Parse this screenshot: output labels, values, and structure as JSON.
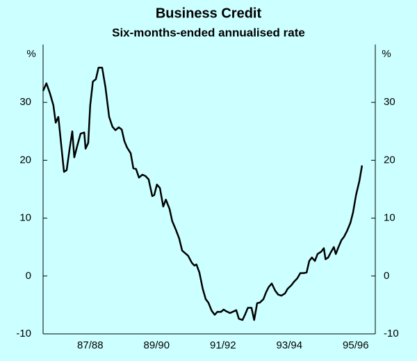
{
  "chart_data": {
    "type": "line",
    "title": "Business Credit",
    "subtitle": "Six-months-ended annualised rate",
    "y_unit": "%",
    "y2_unit": "%",
    "xlim": [
      1986.58,
      1996.59
    ],
    "xticks": [
      {
        "value": 1988,
        "label": "87/88"
      },
      {
        "value": 1990,
        "label": "89/90"
      },
      {
        "value": 1992,
        "label": "91/92"
      },
      {
        "value": 1994,
        "label": "93/94"
      },
      {
        "value": 1996,
        "label": "95/96"
      }
    ],
    "ylim": [
      -10,
      40
    ],
    "yticks": [
      -10,
      0,
      10,
      20,
      30
    ],
    "y2lim": [
      -10,
      40
    ],
    "y2ticks": [
      -10,
      0,
      10,
      20,
      30
    ],
    "color": "#000000",
    "x": [
      1986.58,
      1986.68,
      1986.79,
      1986.89,
      1986.96,
      1987.04,
      1987.12,
      1987.21,
      1987.29,
      1987.38,
      1987.46,
      1987.52,
      1987.61,
      1987.71,
      1987.82,
      1987.86,
      1987.94,
      1988.0,
      1988.08,
      1988.17,
      1988.25,
      1988.36,
      1988.46,
      1988.57,
      1988.67,
      1988.76,
      1988.86,
      1988.95,
      1989.03,
      1989.11,
      1989.22,
      1989.3,
      1989.38,
      1989.47,
      1989.57,
      1989.66,
      1989.76,
      1989.87,
      1989.93,
      1990.01,
      1990.1,
      1990.2,
      1990.28,
      1990.39,
      1990.47,
      1990.58,
      1990.68,
      1990.77,
      1990.85,
      1990.95,
      1991.06,
      1991.14,
      1991.2,
      1991.29,
      1991.39,
      1991.48,
      1991.56,
      1991.66,
      1991.75,
      1991.83,
      1991.94,
      1992.02,
      1992.1,
      1992.21,
      1992.29,
      1992.4,
      1992.48,
      1992.59,
      1992.67,
      1992.75,
      1992.86,
      1992.94,
      1993.03,
      1993.11,
      1993.22,
      1993.3,
      1993.38,
      1993.47,
      1993.57,
      1993.66,
      1993.76,
      1993.87,
      1993.95,
      1994.06,
      1994.14,
      1994.24,
      1994.33,
      1994.43,
      1994.52,
      1994.6,
      1994.68,
      1994.77,
      1994.85,
      1994.96,
      1995.04,
      1995.09,
      1995.17,
      1995.26,
      1995.34,
      1995.4,
      1995.48,
      1995.57,
      1995.65,
      1995.74,
      1995.84,
      1995.92,
      1996.01,
      1996.11,
      1996.19
    ],
    "values": [
      32,
      33.3,
      31.5,
      29.5,
      26.5,
      27.5,
      23,
      18,
      18.3,
      22,
      25,
      20.5,
      22.5,
      24.6,
      24.8,
      22,
      23,
      29.5,
      33.6,
      34,
      36,
      36,
      32.6,
      27.5,
      25.8,
      25.2,
      25.7,
      25.3,
      23.3,
      22.2,
      21.2,
      18.6,
      18.5,
      17,
      17.5,
      17.3,
      16.7,
      13.8,
      14,
      15.8,
      15.2,
      12,
      13.2,
      11.6,
      9.5,
      8,
      6.5,
      4.4,
      4,
      3.5,
      2.3,
      1.8,
      2,
      0.6,
      -2.2,
      -4,
      -4.6,
      -6,
      -6.7,
      -6.2,
      -6.2,
      -5.8,
      -6.1,
      -6.4,
      -6.2,
      -5.9,
      -7.4,
      -7.6,
      -6.6,
      -5.5,
      -5.5,
      -7.6,
      -4.7,
      -4.6,
      -4,
      -2.8,
      -1.9,
      -1.3,
      -2.5,
      -3.2,
      -3.4,
      -3,
      -2.2,
      -1.6,
      -1,
      -0.4,
      0.5,
      0.5,
      0.6,
      2.6,
      3.2,
      2.6,
      3.8,
      4.2,
      4.8,
      2.9,
      3.2,
      4.2,
      5,
      3.8,
      5,
      6.2,
      6.8,
      7.8,
      9.2,
      11,
      14,
      16.4,
      19.1
    ]
  }
}
